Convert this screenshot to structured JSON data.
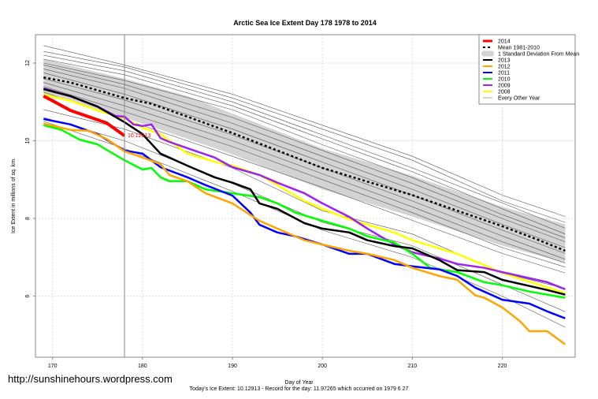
{
  "chart_data": {
    "type": "line",
    "title": "Arctic Sea Ice Extent Day 178 1978 to 2014",
    "xlabel": "Day of Year",
    "ylabel": "Ice Extent in millions of sq. km.",
    "subtitle": "Today's Ice Extent: 10.12913  - Record for the day: 11.97265 which occurred on 1979 6 27",
    "xlim": [
      168.1,
      228.1
    ],
    "ylim": [
      4.43,
      12.73
    ],
    "xticks": [
      170,
      180,
      190,
      200,
      210,
      220
    ],
    "yticks": [
      6,
      8,
      10,
      12
    ],
    "grid": true,
    "legend_position": "top-right",
    "current_day": 178,
    "current_value_label": "10.12913",
    "mean": {
      "name": "Mean 1981-2010",
      "color": "#000000",
      "x": [
        169,
        172,
        175,
        178,
        181,
        185,
        190,
        195,
        200,
        205,
        210,
        215,
        220,
        224,
        227
      ],
      "y": [
        11.63,
        11.5,
        11.3,
        11.1,
        10.95,
        10.62,
        10.2,
        9.75,
        9.3,
        8.95,
        8.6,
        8.2,
        7.8,
        7.45,
        7.17
      ]
    },
    "sd_band": {
      "name": "1 Standard Deviation From Mean",
      "color": "#d3d3d3",
      "x": [
        169,
        178,
        185,
        190,
        200,
        210,
        220,
        227
      ],
      "upper": [
        12.1,
        11.6,
        11.15,
        10.7,
        9.8,
        9.1,
        8.3,
        7.85
      ],
      "lower": [
        11.2,
        10.6,
        10.05,
        9.65,
        8.75,
        8.05,
        7.3,
        6.87
      ]
    },
    "series": [
      {
        "name": "2014",
        "color": "#ff0000",
        "width": 4,
        "x": [
          169,
          170,
          172,
          174,
          176,
          178
        ],
        "y": [
          11.15,
          11.03,
          10.78,
          10.62,
          10.46,
          10.13
        ]
      },
      {
        "name": "2013",
        "color": "#000000",
        "width": 2.5,
        "x": [
          169,
          172,
          175,
          178,
          180,
          182,
          185,
          188,
          190,
          192,
          193,
          195,
          198,
          200,
          203,
          205,
          208,
          210,
          213,
          215,
          218,
          220,
          225,
          227
        ],
        "y": [
          11.33,
          11.15,
          10.88,
          10.48,
          10.17,
          9.67,
          9.36,
          9.06,
          8.92,
          8.75,
          8.39,
          8.25,
          7.88,
          7.74,
          7.64,
          7.44,
          7.29,
          7.23,
          6.93,
          6.67,
          6.62,
          6.42,
          6.16,
          6.04
        ]
      },
      {
        "name": "2012",
        "color": "#ffa500",
        "width": 2.5,
        "x": [
          169,
          172,
          174,
          176,
          178,
          180,
          182,
          183,
          185,
          187,
          190,
          193,
          195,
          198,
          200,
          203,
          205,
          208,
          210,
          213,
          215,
          217,
          218,
          220,
          222,
          223,
          225,
          227
        ],
        "y": [
          10.44,
          10.28,
          10.26,
          10.05,
          9.73,
          9.57,
          9.4,
          9.12,
          8.96,
          8.65,
          8.39,
          7.94,
          7.74,
          7.44,
          7.33,
          7.17,
          7.09,
          6.93,
          6.73,
          6.52,
          6.42,
          6.02,
          5.96,
          5.71,
          5.35,
          5.1,
          5.1,
          4.76
        ]
      },
      {
        "name": "2011",
        "color": "#0000ff",
        "width": 2.5,
        "x": [
          169,
          172,
          175,
          178,
          180,
          182,
          185,
          187,
          190,
          192,
          193,
          195,
          197,
          200,
          203,
          205,
          208,
          210,
          213,
          215,
          217,
          220,
          223,
          225,
          227
        ],
        "y": [
          10.56,
          10.42,
          10.17,
          9.75,
          9.67,
          9.32,
          9.06,
          8.86,
          8.59,
          8.15,
          7.84,
          7.64,
          7.54,
          7.33,
          7.09,
          7.09,
          6.83,
          6.77,
          6.69,
          6.52,
          6.22,
          5.91,
          5.81,
          5.61,
          5.43
        ]
      },
      {
        "name": "2010",
        "color": "#00ff00",
        "width": 2.5,
        "x": [
          169,
          171,
          173,
          175,
          176,
          178,
          180,
          181,
          182,
          183,
          185,
          187,
          190,
          193,
          195,
          197,
          200,
          203,
          205,
          208,
          210,
          212,
          215,
          218,
          220,
          223,
          227
        ],
        "y": [
          10.4,
          10.28,
          10.03,
          9.91,
          9.77,
          9.5,
          9.26,
          9.3,
          9.06,
          8.96,
          8.96,
          8.75,
          8.65,
          8.55,
          8.39,
          8.15,
          7.94,
          7.74,
          7.54,
          7.38,
          7.09,
          6.73,
          6.62,
          6.36,
          6.28,
          6.12,
          5.96
        ]
      },
      {
        "name": "2009",
        "color": "#a020f0",
        "width": 2.5,
        "x": [
          169,
          172,
          175,
          177,
          178,
          179,
          180,
          181,
          182,
          183,
          185,
          188,
          190,
          193,
          195,
          198,
          200,
          203,
          205,
          208,
          210,
          213,
          215,
          218,
          220,
          225,
          227
        ],
        "y": [
          11.35,
          11.15,
          10.88,
          10.64,
          10.62,
          10.42,
          10.38,
          10.42,
          10.07,
          9.97,
          9.81,
          9.57,
          9.32,
          9.12,
          8.92,
          8.65,
          8.39,
          8.04,
          7.74,
          7.33,
          7.13,
          6.97,
          6.83,
          6.73,
          6.62,
          6.36,
          6.18
        ]
      },
      {
        "name": "2008",
        "color": "#ffff00",
        "width": 2.5,
        "x": [
          169,
          172,
          175,
          178,
          180,
          182,
          185,
          188,
          190,
          193,
          195,
          198,
          200,
          203,
          205,
          208,
          210,
          213,
          215,
          218,
          220,
          224,
          227
        ],
        "y": [
          11.19,
          11.03,
          10.78,
          10.58,
          10.34,
          10.17,
          9.67,
          9.46,
          9.36,
          9.12,
          8.86,
          8.45,
          8.25,
          7.98,
          7.84,
          7.64,
          7.44,
          7.23,
          7.09,
          6.8,
          6.6,
          6.3,
          6.08
        ]
      }
    ],
    "other_years": {
      "name": "Every Other Year",
      "color": "#555555",
      "x": [
        169,
        178,
        190,
        200,
        210,
        220,
        227
      ],
      "y": [
        [
          12.45,
          11.95,
          11.2,
          10.4,
          9.6,
          8.6,
          8.05
        ],
        [
          12.3,
          11.9,
          11.1,
          10.3,
          9.5,
          8.45,
          7.9
        ],
        [
          12.2,
          11.8,
          11.0,
          10.15,
          9.3,
          8.4,
          7.75
        ],
        [
          12.1,
          11.7,
          10.9,
          10.05,
          9.2,
          8.25,
          7.6
        ],
        [
          12.0,
          11.55,
          10.8,
          9.9,
          9.05,
          8.1,
          7.5
        ],
        [
          11.95,
          11.45,
          10.6,
          9.75,
          8.9,
          8.0,
          7.4
        ],
        [
          11.85,
          11.35,
          10.45,
          9.6,
          8.75,
          7.85,
          7.25
        ],
        [
          11.75,
          11.2,
          10.3,
          9.45,
          8.6,
          7.7,
          7.1
        ],
        [
          11.6,
          11.05,
          10.15,
          9.3,
          8.45,
          7.55,
          6.95
        ],
        [
          11.5,
          10.9,
          10.0,
          9.15,
          8.3,
          7.4,
          6.85
        ],
        [
          11.4,
          10.75,
          9.85,
          9.0,
          8.15,
          7.25,
          6.75
        ],
        [
          11.25,
          10.55,
          9.6,
          8.8,
          7.95,
          7.1,
          6.6
        ],
        [
          10.8,
          10.3,
          9.3,
          8.2,
          7.6,
          6.6,
          6.2
        ],
        [
          10.6,
          10.0,
          8.9,
          7.9,
          7.3,
          6.3,
          5.6
        ],
        [
          10.5,
          9.8,
          8.7,
          7.7,
          7.0,
          6.0,
          5.2
        ]
      ]
    }
  },
  "footer": {
    "website": "http://sunshinehours.wordpress.com"
  }
}
